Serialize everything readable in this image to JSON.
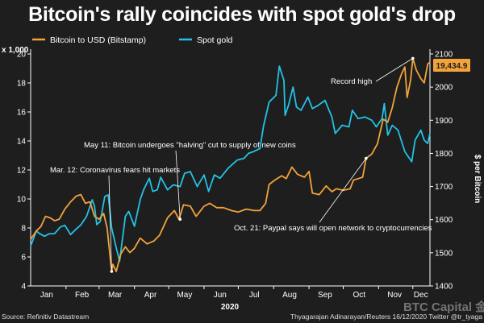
{
  "header": {
    "title": "Bitcoin's rally coincides with spot gold's drop"
  },
  "footer": {
    "source": "Source: Refinitiv Datastream",
    "credit": "Thyagarajan Adinarayan/Reuters 16/12/2020 Twitter @tr_tyaga"
  },
  "watermark": "BTC Capital 金色财经",
  "colors": {
    "background": "#1e1e1e",
    "bitcoin": "#f2a33a",
    "gold": "#22c2e6",
    "axis": "#ffffff"
  },
  "chart_data": {
    "type": "line",
    "x_axis": {
      "label": "2020",
      "tick_labels": [
        "Jan",
        "Feb",
        "Mar",
        "Apr",
        "May",
        "Jun",
        "Jul",
        "Aug",
        "Sep",
        "Oct",
        "Nov",
        "Dec"
      ],
      "range": [
        "2020-01-01",
        "2020-12-16"
      ]
    },
    "y_left": {
      "unit_label": "x 1,000",
      "range": [
        4,
        20
      ],
      "ticks": [
        4,
        6,
        8,
        10,
        12,
        14,
        16,
        18,
        20
      ]
    },
    "y_right": {
      "label": "$ per Bitcoin",
      "range": [
        1400,
        2100
      ],
      "ticks": [
        1400,
        1500,
        1600,
        1700,
        1800,
        1900,
        2000,
        2100
      ]
    },
    "legend": {
      "placement": "top-left"
    },
    "last_value_label": "19,434.9",
    "series": [
      {
        "name": "Bitcoin to USD (Bitstamp)",
        "axis": "left",
        "color": "#f2a33a",
        "points": [
          [
            "2020-01-01",
            7.2
          ],
          [
            "2020-01-06",
            7.8
          ],
          [
            "2020-01-10",
            8.1
          ],
          [
            "2020-01-14",
            8.8
          ],
          [
            "2020-01-18",
            8.7
          ],
          [
            "2020-01-22",
            8.5
          ],
          [
            "2020-01-26",
            8.6
          ],
          [
            "2020-01-31",
            9.3
          ],
          [
            "2020-02-05",
            9.8
          ],
          [
            "2020-02-10",
            10.2
          ],
          [
            "2020-02-14",
            10.3
          ],
          [
            "2020-02-18",
            9.7
          ],
          [
            "2020-02-22",
            9.8
          ],
          [
            "2020-02-26",
            8.8
          ],
          [
            "2020-03-01",
            8.6
          ],
          [
            "2020-03-05",
            9.0
          ],
          [
            "2020-03-08",
            8.0
          ],
          [
            "2020-03-12",
            5.0
          ],
          [
            "2020-03-13",
            5.5
          ],
          [
            "2020-03-16",
            5.0
          ],
          [
            "2020-03-20",
            6.2
          ],
          [
            "2020-03-24",
            6.7
          ],
          [
            "2020-03-28",
            6.3
          ],
          [
            "2020-04-01",
            6.6
          ],
          [
            "2020-04-06",
            7.3
          ],
          [
            "2020-04-12",
            6.9
          ],
          [
            "2020-04-18",
            7.1
          ],
          [
            "2020-04-23",
            7.5
          ],
          [
            "2020-04-30",
            8.7
          ],
          [
            "2020-05-06",
            9.2
          ],
          [
            "2020-05-10",
            8.6
          ],
          [
            "2020-05-14",
            9.6
          ],
          [
            "2020-05-20",
            9.5
          ],
          [
            "2020-05-25",
            8.8
          ],
          [
            "2020-06-01",
            9.5
          ],
          [
            "2020-06-06",
            9.7
          ],
          [
            "2020-06-12",
            9.4
          ],
          [
            "2020-06-18",
            9.4
          ],
          [
            "2020-06-25",
            9.2
          ],
          [
            "2020-07-01",
            9.1
          ],
          [
            "2020-07-08",
            9.3
          ],
          [
            "2020-07-15",
            9.2
          ],
          [
            "2020-07-20",
            9.2
          ],
          [
            "2020-07-25",
            9.7
          ],
          [
            "2020-07-28",
            11.0
          ],
          [
            "2020-08-02",
            11.3
          ],
          [
            "2020-08-08",
            11.6
          ],
          [
            "2020-08-12",
            11.4
          ],
          [
            "2020-08-17",
            12.2
          ],
          [
            "2020-08-22",
            11.7
          ],
          [
            "2020-08-28",
            11.5
          ],
          [
            "2020-09-01",
            11.9
          ],
          [
            "2020-09-04",
            10.4
          ],
          [
            "2020-09-10",
            10.3
          ],
          [
            "2020-09-16",
            10.9
          ],
          [
            "2020-09-21",
            10.5
          ],
          [
            "2020-09-25",
            10.7
          ],
          [
            "2020-10-01",
            10.6
          ],
          [
            "2020-10-07",
            10.7
          ],
          [
            "2020-10-10",
            11.3
          ],
          [
            "2020-10-14",
            11.4
          ],
          [
            "2020-10-18",
            11.5
          ],
          [
            "2020-10-21",
            12.8
          ],
          [
            "2020-10-26",
            13.1
          ],
          [
            "2020-10-31",
            13.8
          ],
          [
            "2020-11-05",
            15.5
          ],
          [
            "2020-11-09",
            15.3
          ],
          [
            "2020-11-13",
            16.3
          ],
          [
            "2020-11-17",
            17.7
          ],
          [
            "2020-11-21",
            18.6
          ],
          [
            "2020-11-24",
            19.1
          ],
          [
            "2020-11-26",
            17.0
          ],
          [
            "2020-11-29",
            18.2
          ],
          [
            "2020-12-01",
            19.7
          ],
          [
            "2020-12-04",
            18.9
          ],
          [
            "2020-12-08",
            18.3
          ],
          [
            "2020-12-11",
            18.0
          ],
          [
            "2020-12-14",
            19.3
          ],
          [
            "2020-12-16",
            19.4349
          ]
        ]
      },
      {
        "name": "Spot gold",
        "axis": "right",
        "color": "#22c2e6",
        "points": [
          [
            "2020-01-01",
            1520
          ],
          [
            "2020-01-06",
            1566
          ],
          [
            "2020-01-08",
            1560
          ],
          [
            "2020-01-13",
            1550
          ],
          [
            "2020-01-17",
            1557
          ],
          [
            "2020-01-22",
            1558
          ],
          [
            "2020-01-27",
            1578
          ],
          [
            "2020-01-31",
            1583
          ],
          [
            "2020-02-05",
            1555
          ],
          [
            "2020-02-10",
            1572
          ],
          [
            "2020-02-14",
            1584
          ],
          [
            "2020-02-19",
            1610
          ],
          [
            "2020-02-24",
            1660
          ],
          [
            "2020-02-26",
            1640
          ],
          [
            "2020-02-28",
            1585
          ],
          [
            "2020-03-02",
            1595
          ],
          [
            "2020-03-06",
            1670
          ],
          [
            "2020-03-09",
            1675
          ],
          [
            "2020-03-12",
            1575
          ],
          [
            "2020-03-16",
            1515
          ],
          [
            "2020-03-19",
            1475
          ],
          [
            "2020-03-24",
            1610
          ],
          [
            "2020-03-27",
            1625
          ],
          [
            "2020-04-01",
            1580
          ],
          [
            "2020-04-06",
            1660
          ],
          [
            "2020-04-09",
            1690
          ],
          [
            "2020-04-14",
            1725
          ],
          [
            "2020-04-17",
            1685
          ],
          [
            "2020-04-21",
            1690
          ],
          [
            "2020-04-24",
            1728
          ],
          [
            "2020-04-30",
            1690
          ],
          [
            "2020-05-05",
            1705
          ],
          [
            "2020-05-11",
            1700
          ],
          [
            "2020-05-15",
            1740
          ],
          [
            "2020-05-20",
            1745
          ],
          [
            "2020-05-26",
            1700
          ],
          [
            "2020-06-01",
            1735
          ],
          [
            "2020-06-05",
            1685
          ],
          [
            "2020-06-10",
            1735
          ],
          [
            "2020-06-15",
            1725
          ],
          [
            "2020-06-22",
            1755
          ],
          [
            "2020-06-30",
            1780
          ],
          [
            "2020-07-06",
            1785
          ],
          [
            "2020-07-10",
            1800
          ],
          [
            "2020-07-14",
            1805
          ],
          [
            "2020-07-20",
            1815
          ],
          [
            "2020-07-23",
            1880
          ],
          [
            "2020-07-28",
            1955
          ],
          [
            "2020-08-03",
            1975
          ],
          [
            "2020-08-06",
            2063
          ],
          [
            "2020-08-10",
            2020
          ],
          [
            "2020-08-11",
            1915
          ],
          [
            "2020-08-14",
            1945
          ],
          [
            "2020-08-18",
            2000
          ],
          [
            "2020-08-21",
            1940
          ],
          [
            "2020-08-25",
            1930
          ],
          [
            "2020-08-31",
            1970
          ],
          [
            "2020-09-04",
            1935
          ],
          [
            "2020-09-09",
            1945
          ],
          [
            "2020-09-15",
            1960
          ],
          [
            "2020-09-21",
            1910
          ],
          [
            "2020-09-24",
            1860
          ],
          [
            "2020-09-30",
            1885
          ],
          [
            "2020-10-06",
            1880
          ],
          [
            "2020-10-09",
            1930
          ],
          [
            "2020-10-14",
            1905
          ],
          [
            "2020-10-20",
            1910
          ],
          [
            "2020-10-26",
            1900
          ],
          [
            "2020-10-30",
            1880
          ],
          [
            "2020-11-04",
            1905
          ],
          [
            "2020-11-06",
            1950
          ],
          [
            "2020-11-09",
            1855
          ],
          [
            "2020-11-13",
            1885
          ],
          [
            "2020-11-18",
            1870
          ],
          [
            "2020-11-24",
            1805
          ],
          [
            "2020-11-30",
            1775
          ],
          [
            "2020-12-03",
            1840
          ],
          [
            "2020-12-08",
            1870
          ],
          [
            "2020-12-11",
            1840
          ],
          [
            "2020-12-14",
            1830
          ],
          [
            "2020-12-16",
            1860
          ]
        ]
      }
    ],
    "annotations": [
      {
        "id": "record",
        "text": "Record high",
        "date": "2020-12-01",
        "value": 19.7
      },
      {
        "id": "march",
        "text": "Mar. 12: Coronavirus fears hit markets",
        "date": "2020-03-12",
        "value": 5.0
      },
      {
        "id": "halving",
        "text": "May 11: Bitcoin undergoes \"halving\" cut to supply of new coins",
        "date": "2020-05-11",
        "value": 8.6
      },
      {
        "id": "paypal",
        "text": "Oct. 21: Paypal says will open network to cryptocurrencies",
        "date": "2020-10-21",
        "value": 12.8
      }
    ]
  }
}
